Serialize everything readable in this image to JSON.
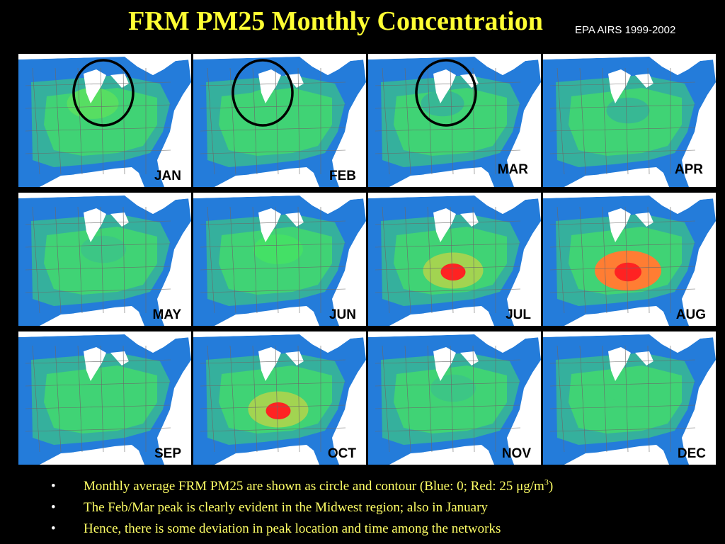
{
  "slide": {
    "title": "FRM PM25 Monthly Concentration",
    "source": "EPA AIRS 1999-2002",
    "bullets": [
      {
        "pre": "Monthly average FRM PM25 are shown as circle and contour (Blue: 0; Red: 25 ",
        "unit": "μg/m",
        "sup": "3",
        "post": ")"
      },
      {
        "pre": "The Feb/Mar peak is clearly evident in the Midwest region; also in January"
      },
      {
        "pre": "Hence, there is some deviation in peak location and time among the networks"
      }
    ]
  },
  "legend": {
    "low_color": "#1a5cff",
    "mid_color": "#44e066",
    "high_color": "#ff2222",
    "low_value": "0",
    "high_value": "25"
  },
  "maps": [
    {
      "label": "JAN",
      "highlight_circle": true,
      "level": 0.55
    },
    {
      "label": "FEB",
      "highlight_circle": true,
      "level": 0.45
    },
    {
      "label": "MAR",
      "highlight_circle": true,
      "level": 0.35
    },
    {
      "label": "APR",
      "highlight_circle": false,
      "level": 0.35
    },
    {
      "label": "MAY",
      "highlight_circle": false,
      "level": 0.4
    },
    {
      "label": "JUN",
      "highlight_circle": false,
      "level": 0.5
    },
    {
      "label": "JUL",
      "highlight_circle": false,
      "level": 0.75
    },
    {
      "label": "AUG",
      "highlight_circle": false,
      "level": 0.9
    },
    {
      "label": "SEP",
      "highlight_circle": false,
      "level": 0.45
    },
    {
      "label": "OCT",
      "highlight_circle": false,
      "level": 0.75
    },
    {
      "label": "NOV",
      "highlight_circle": false,
      "level": 0.4
    },
    {
      "label": "DEC",
      "highlight_circle": false,
      "level": 0.45
    }
  ]
}
